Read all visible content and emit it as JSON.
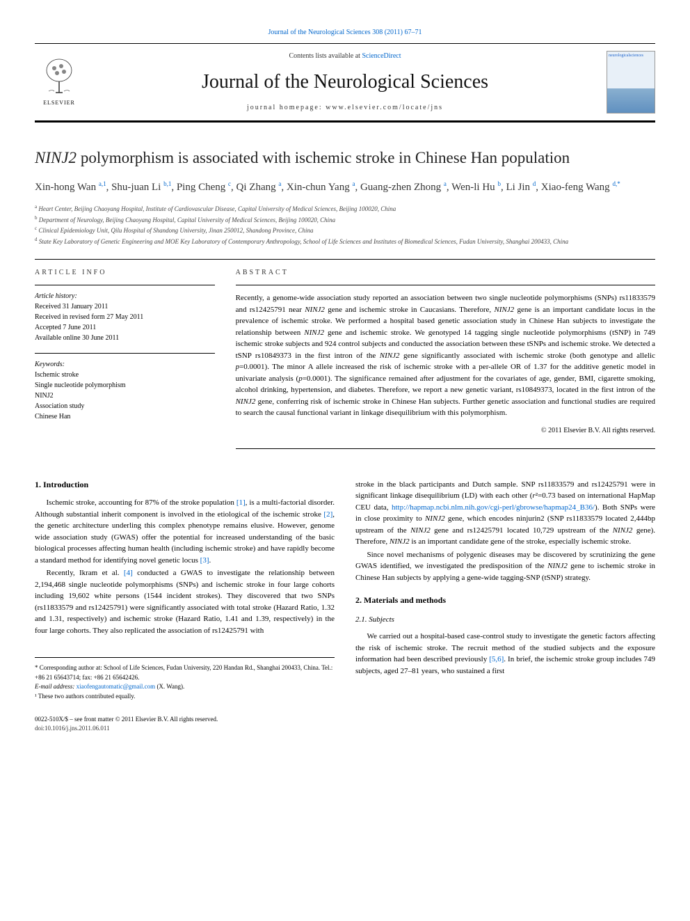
{
  "header": {
    "citation_link": "Journal of the Neurological Sciences 308 (2011) 67–71",
    "contents_prefix": "Contents lists available at ",
    "contents_link": "ScienceDirect",
    "journal_name": "Journal of the Neurological Sciences",
    "homepage_prefix": "journal homepage: ",
    "homepage_url": "www.elsevier.com/locate/jns",
    "elsevier_label": "ELSEVIER",
    "cover_text": "neurologicalsciences"
  },
  "title": {
    "italic_part": "NINJ2",
    "rest": " polymorphism is associated with ischemic stroke in Chinese Han population"
  },
  "authors_html": "Xin-hong Wan <sup>a,1</sup>, Shu-juan Li <sup>b,1</sup>, Ping Cheng <sup>c</sup>, Qi Zhang <sup>a</sup>, Xin-chun Yang <sup>a</sup>, Guang-zhen Zhong <sup>a</sup>, Wen-li Hu <sup>b</sup>, Li Jin <sup>d</sup>, Xiao-feng Wang <sup>d,*</sup>",
  "affiliations": [
    {
      "sup": "a",
      "text": "Heart Center, Beijing Chaoyang Hospital, Institute of Cardiovascular Disease, Capital University of Medical Sciences, Beijing 100020, China"
    },
    {
      "sup": "b",
      "text": "Department of Neurology, Beijing Chaoyang Hospital, Capital University of Medical Sciences, Beijing 100020, China"
    },
    {
      "sup": "c",
      "text": "Clinical Epidemiology Unit, Qilu Hospital of Shandong University, Jinan 250012, Shandong Province, China"
    },
    {
      "sup": "d",
      "text": "State Key Laboratory of Genetic Engineering and MOE Key Laboratory of Contemporary Anthropology, School of Life Sciences and Institutes of Biomedical Sciences, Fudan University, Shanghai 200433, China"
    }
  ],
  "article_info": {
    "label": "article info",
    "history_label": "Article history:",
    "history": [
      "Received 31 January 2011",
      "Received in revised form 27 May 2011",
      "Accepted 7 June 2011",
      "Available online 30 June 2011"
    ],
    "keywords_label": "Keywords:",
    "keywords": [
      "Ischemic stroke",
      "Single nucleotide polymorphism",
      "NINJ2",
      "Association study",
      "Chinese Han"
    ]
  },
  "abstract": {
    "label": "abstract",
    "text": "Recently, a genome-wide association study reported an association between two single nucleotide polymorphisms (SNPs) rs11833579 and rs12425791 near NINJ2 gene and ischemic stroke in Caucasians. Therefore, NINJ2 gene is an important candidate locus in the prevalence of ischemic stroke. We performed a hospital based genetic association study in Chinese Han subjects to investigate the relationship between NINJ2 gene and ischemic stroke. We genotyped 14 tagging single nucleotide polymorphisms (tSNP) in 749 ischemic stroke subjects and 924 control subjects and conducted the association between these tSNPs and ischemic stroke. We detected a tSNP rs10849373 in the first intron of the NINJ2 gene significantly associated with ischemic stroke (both genotype and allelic p=0.0001). The minor A allele increased the risk of ischemic stroke with a per-allele OR of 1.37 for the additive genetic model in univariate analysis (p=0.0001). The significance remained after adjustment for the covariates of age, gender, BMI, cigarette smoking, alcohol drinking, hypertension, and diabetes. Therefore, we report a new genetic variant, rs10849373, located in the first intron of the NINJ2 gene, conferring risk of ischemic stroke in Chinese Han subjects. Further genetic association and functional studies are required to search the causal functional variant in linkage disequilibrium with this polymorphism.",
    "copyright": "© 2011 Elsevier B.V. All rights reserved."
  },
  "body": {
    "intro_heading": "1. Introduction",
    "intro_p1": "Ischemic stroke, accounting for 87% of the stroke population [1], is a multi-factorial disorder. Although substantial inherit component is involved in the etiological of the ischemic stroke [2], the genetic architecture underling this complex phenotype remains elusive. However, genome wide association study (GWAS) offer the potential for increased understanding of the basic biological processes affecting human health (including ischemic stroke) and have rapidly become a standard method for identifying novel genetic locus [3].",
    "intro_p2": "Recently, Ikram et al. [4] conducted a GWAS to investigate the relationship between 2,194,468 single nucleotide polymorphisms (SNPs) and ischemic stroke in four large cohorts including 19,602 white persons (1544 incident strokes). They discovered that two SNPs (rs11833579 and rs12425791) were significantly associated with total stroke (Hazard Ratio, 1.32 and 1.31, respectively) and ischemic stroke (Hazard Ratio, 1.41 and 1.39, respectively) in the four large cohorts. They also replicated the association of rs12425791 with",
    "col2_p1": "stroke in the black participants and Dutch sample. SNP rs11833579 and rs12425791 were in significant linkage disequilibrium (LD) with each other (r²=0.73 based on international HapMap CEU data, http://hapmap.ncbi.nlm.nih.gov/cgi-perl/gbrowse/hapmap24_B36/). Both SNPs were in close proximity to NINJ2 gene, which encodes ninjurin2 (SNP rs11833579 located 2,444bp upstream of the NINJ2 gene and rs12425791 located 10,729 upstream of the NINJ2 gene). Therefore, NINJ2 is an important candidate gene of the stroke, especially ischemic stroke.",
    "col2_p2": "Since novel mechanisms of polygenic diseases may be discovered by scrutinizing the gene GWAS identified, we investigated the predisposition of the NINJ2 gene to ischemic stroke in Chinese Han subjects by applying a gene-wide tagging-SNP (tSNP) strategy.",
    "methods_heading": "2. Materials and methods",
    "subjects_heading": "2.1. Subjects",
    "subjects_p1": "We carried out a hospital-based case-control study to investigate the genetic factors affecting the risk of ischemic stroke. The recruit method of the studied subjects and the exposure information had been described previously [5,6]. In brief, the ischemic stroke group includes 749 subjects, aged 27–81 years, who sustained a first"
  },
  "footnotes": {
    "corresponding": "* Corresponding author at: School of Life Sciences, Fudan University, 220 Handan Rd., Shanghai 200433, China. Tel.: +86 21 65643714; fax: +86 21 65642426.",
    "email_label": "E-mail address: ",
    "email": "xiaofengautomatic@gmail.com",
    "email_name": " (X. Wang).",
    "equal": "¹ These two authors contributed equally."
  },
  "footer": {
    "issn": "0022-510X/$ – see front matter © 2011 Elsevier B.V. All rights reserved.",
    "doi": "doi:10.1016/j.jns.2011.06.011"
  },
  "colors": {
    "link": "#0066cc",
    "text": "#000000",
    "muted": "#444444"
  }
}
